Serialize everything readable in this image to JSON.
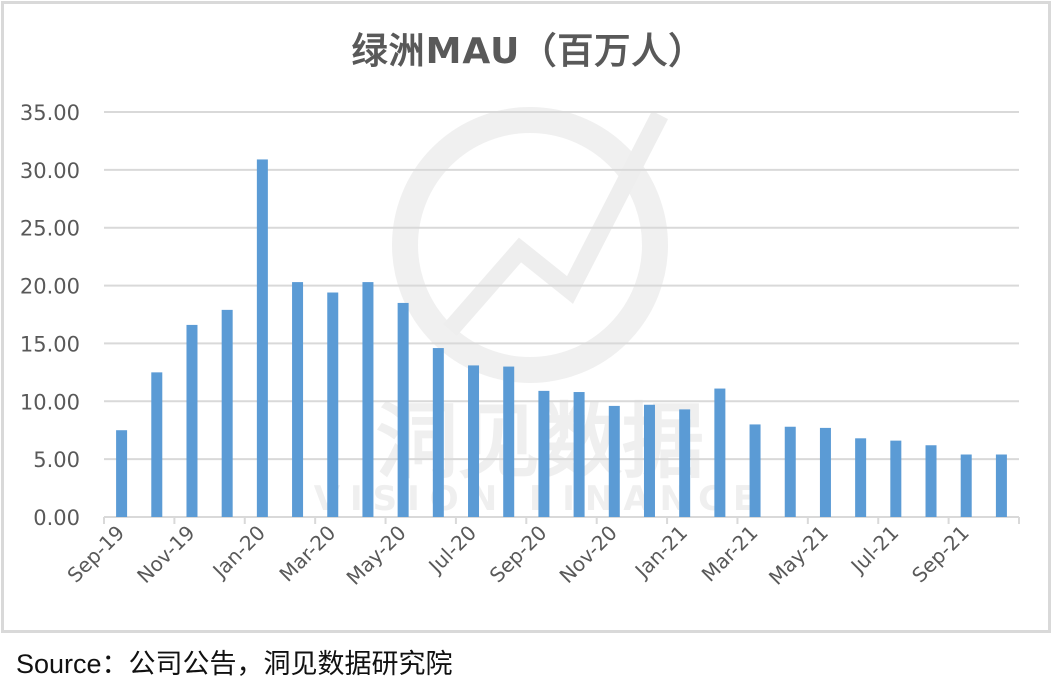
{
  "title": "绿洲MAU（百万人）",
  "source": "Source：公司公告，洞见数据研究院",
  "watermark": {
    "cn": "洞见数据",
    "en": "VISION FINANCE"
  },
  "colors": {
    "bar": "#5b9bd5",
    "grid": "#d9d9d9",
    "axis_text": "#595959",
    "title": "#595959",
    "frame": "#d9d9d9"
  },
  "y_axis": {
    "ticks": [
      "0.00",
      "5.00",
      "10.00",
      "15.00",
      "20.00",
      "25.00",
      "30.00",
      "35.00"
    ]
  },
  "x_axis": {
    "tick_labels": [
      "Sep-19",
      "Nov-19",
      "Jan-20",
      "Mar-20",
      "May-20",
      "Jul-20",
      "Sep-20",
      "Nov-20",
      "Jan-21",
      "Mar-21",
      "May-21",
      "Jul-21",
      "Sep-21"
    ]
  },
  "chart_data": {
    "type": "bar",
    "title": "绿洲MAU（百万人）",
    "xlabel": "",
    "ylabel": "",
    "ylim": [
      0,
      35
    ],
    "yticks": [
      0,
      5,
      10,
      15,
      20,
      25,
      30,
      35
    ],
    "grid": true,
    "legend": null,
    "categories": [
      "Sep-19",
      "Oct-19",
      "Nov-19",
      "Dec-19",
      "Jan-20",
      "Feb-20",
      "Mar-20",
      "Apr-20",
      "May-20",
      "Jun-20",
      "Jul-20",
      "Aug-20",
      "Sep-20",
      "Oct-20",
      "Nov-20",
      "Dec-20",
      "Jan-21",
      "Feb-21",
      "Mar-21",
      "Apr-21",
      "May-21",
      "Jun-21",
      "Jul-21",
      "Aug-21",
      "Sep-21",
      "Oct-21"
    ],
    "series": [
      {
        "name": "绿洲MAU（百万人）",
        "values": [
          7.5,
          12.5,
          16.6,
          17.9,
          30.9,
          20.3,
          19.4,
          20.3,
          18.5,
          14.6,
          13.1,
          13.0,
          10.9,
          10.8,
          9.6,
          9.7,
          9.3,
          11.1,
          8.0,
          7.8,
          7.7,
          6.8,
          6.6,
          6.2,
          5.4,
          5.4
        ]
      }
    ],
    "source": "Source：公司公告，洞见数据研究院"
  }
}
